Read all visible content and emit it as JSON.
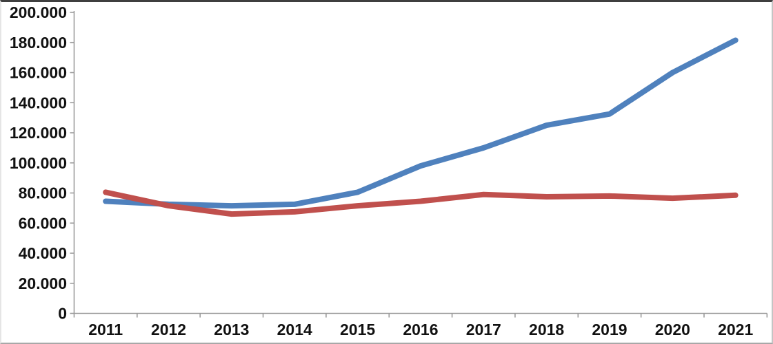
{
  "chart_data": {
    "type": "line",
    "title": "",
    "xlabel": "",
    "ylabel": "",
    "grid": "off",
    "legend": "none",
    "categories": [
      "2011",
      "2012",
      "2013",
      "2014",
      "2015",
      "2016",
      "2017",
      "2018",
      "2019",
      "2020",
      "2021"
    ],
    "y_ticks": [
      {
        "value": 0,
        "label": "0"
      },
      {
        "value": 20000,
        "label": "20.000"
      },
      {
        "value": 40000,
        "label": "40.000"
      },
      {
        "value": 60000,
        "label": "60.000"
      },
      {
        "value": 80000,
        "label": "80.000"
      },
      {
        "value": 100000,
        "label": "100.000"
      },
      {
        "value": 120000,
        "label": "120.000"
      },
      {
        "value": 140000,
        "label": "140.000"
      },
      {
        "value": 160000,
        "label": "160.000"
      },
      {
        "value": 180000,
        "label": "180.000"
      },
      {
        "value": 200000,
        "label": "200.000"
      }
    ],
    "ylim": [
      0,
      200000
    ],
    "series": [
      {
        "name": "blue-series",
        "color": "#4f81bd",
        "values": [
          74500,
          72500,
          71500,
          72500,
          80500,
          98000,
          110000,
          125000,
          132500,
          160000,
          181500
        ]
      },
      {
        "name": "red-series",
        "color": "#c0504d",
        "values": [
          80500,
          71500,
          66000,
          67500,
          71500,
          74500,
          79000,
          77500,
          78000,
          76500,
          78500
        ]
      }
    ],
    "axis_color": "#9b9b9b",
    "text_color": "#111111"
  }
}
